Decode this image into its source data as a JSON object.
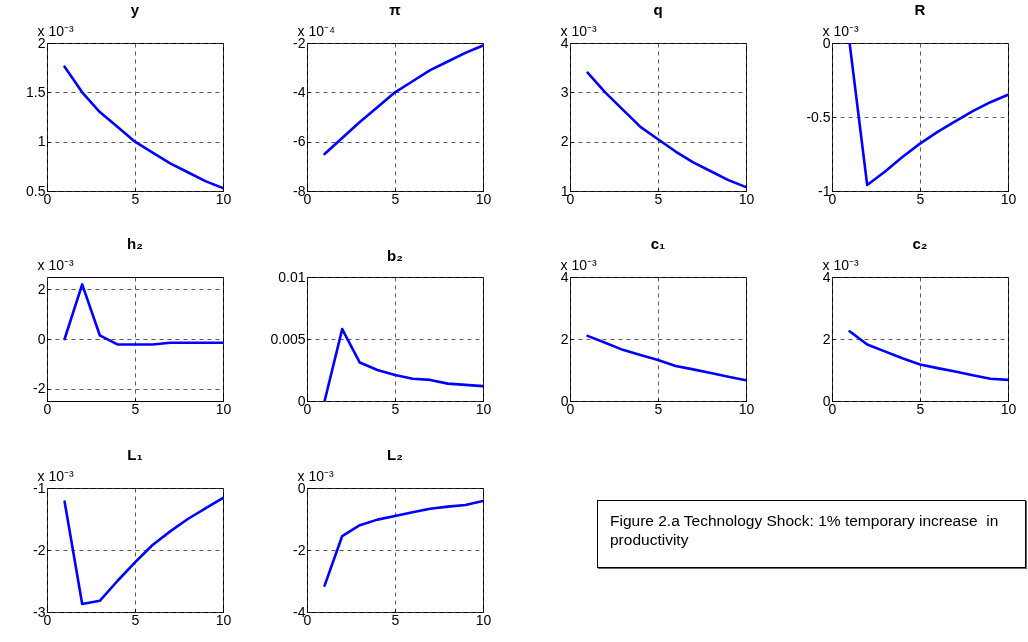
{
  "chart_data": [
    {
      "type": "line",
      "title": "y",
      "ylabel": "x 10⁻³",
      "x": [
        1,
        2,
        3,
        4,
        5,
        6,
        7,
        8,
        9,
        10
      ],
      "values": [
        1.76,
        1.5,
        1.3,
        1.15,
        1.0,
        0.89,
        0.78,
        0.69,
        0.6,
        0.53
      ],
      "color": "#0000ff",
      "xlim": [
        0,
        10
      ],
      "xticks": [
        0,
        5,
        10
      ],
      "ylim": [
        0.5,
        2
      ],
      "yticks": [
        0.5,
        1,
        1.5,
        2
      ],
      "grid": true
    },
    {
      "type": "line",
      "title": "π",
      "ylabel": "x 10⁻⁴",
      "x": [
        1,
        2,
        3,
        4,
        5,
        6,
        7,
        8,
        9,
        10
      ],
      "values": [
        -6.5,
        -5.85,
        -5.2,
        -4.6,
        -4.0,
        -3.55,
        -3.1,
        -2.75,
        -2.4,
        -2.1
      ],
      "color": "#0000ff",
      "xlim": [
        0,
        10
      ],
      "xticks": [
        0,
        5,
        10
      ],
      "ylim": [
        -8,
        -2
      ],
      "yticks": [
        -8,
        -6,
        -4,
        -2
      ],
      "grid": true
    },
    {
      "type": "line",
      "title": "q",
      "ylabel": "x 10⁻³",
      "x": [
        1,
        2,
        3,
        4,
        5,
        6,
        7,
        8,
        9,
        10
      ],
      "values": [
        3.4,
        3.0,
        2.65,
        2.3,
        2.05,
        1.8,
        1.58,
        1.4,
        1.22,
        1.08
      ],
      "color": "#0000ff",
      "xlim": [
        0,
        10
      ],
      "xticks": [
        0,
        5,
        10
      ],
      "ylim": [
        1,
        4
      ],
      "yticks": [
        1,
        2,
        3,
        4
      ],
      "grid": true
    },
    {
      "type": "line",
      "title": "R",
      "ylabel": "x 10⁻³",
      "x": [
        1,
        2,
        3,
        4,
        5,
        6,
        7,
        8,
        9,
        10
      ],
      "values": [
        0,
        -0.96,
        -0.87,
        -0.77,
        -0.68,
        -0.6,
        -0.53,
        -0.46,
        -0.4,
        -0.35
      ],
      "color": "#0000ff",
      "xlim": [
        0,
        10
      ],
      "xticks": [
        0,
        5,
        10
      ],
      "ylim": [
        -1,
        0
      ],
      "yticks": [
        -1,
        -0.5,
        0
      ],
      "grid": true
    },
    {
      "type": "line",
      "title": "h₂",
      "ylabel": "x 10⁻³",
      "x": [
        1,
        2,
        3,
        4,
        5,
        6,
        7,
        8,
        9,
        10
      ],
      "values": [
        0,
        2.2,
        0.15,
        -0.22,
        -0.22,
        -0.22,
        -0.15,
        -0.15,
        -0.15,
        -0.15
      ],
      "color": "#0000ff",
      "xlim": [
        0,
        10
      ],
      "xticks": [
        0,
        5,
        10
      ],
      "ylim": [
        -2.5,
        2.5
      ],
      "yticks": [
        -2,
        0,
        2
      ],
      "grid": true
    },
    {
      "type": "line",
      "title": "b₂",
      "x": [
        1,
        2,
        3,
        4,
        5,
        6,
        7,
        8,
        9,
        10
      ],
      "values": [
        0,
        0.0058,
        0.0031,
        0.0025,
        0.0021,
        0.0018,
        0.0017,
        0.0014,
        0.0013,
        0.0012
      ],
      "color": "#0000ff",
      "xlim": [
        0,
        10
      ],
      "xticks": [
        0,
        5,
        10
      ],
      "ylim": [
        0,
        0.01
      ],
      "yticks": [
        0,
        0.005,
        0.01
      ],
      "grid": true
    },
    {
      "type": "line",
      "title": "c₁",
      "ylabel": "x 10⁻³",
      "x": [
        1,
        2,
        3,
        4,
        5,
        6,
        7,
        8,
        9,
        10
      ],
      "values": [
        2.1,
        1.88,
        1.65,
        1.48,
        1.32,
        1.13,
        1.02,
        0.9,
        0.78,
        0.67
      ],
      "color": "#0000ff",
      "xlim": [
        0,
        10
      ],
      "xticks": [
        0,
        5,
        10
      ],
      "ylim": [
        0,
        4
      ],
      "yticks": [
        0,
        2,
        4
      ],
      "grid": true
    },
    {
      "type": "line",
      "title": "c₂",
      "ylabel": "x 10⁻³",
      "x": [
        1,
        2,
        3,
        4,
        5,
        6,
        7,
        8,
        9,
        10
      ],
      "values": [
        2.25,
        1.82,
        1.6,
        1.38,
        1.18,
        1.06,
        0.95,
        0.83,
        0.72,
        0.68
      ],
      "color": "#0000ff",
      "xlim": [
        0,
        10
      ],
      "xticks": [
        0,
        5,
        10
      ],
      "ylim": [
        0,
        4
      ],
      "yticks": [
        0,
        2,
        4
      ],
      "grid": true
    },
    {
      "type": "line",
      "title": "L₁",
      "ylabel": "x 10⁻³",
      "x": [
        1,
        2,
        3,
        4,
        5,
        6,
        7,
        8,
        9,
        10
      ],
      "values": [
        -1.22,
        -2.87,
        -2.82,
        -2.5,
        -2.2,
        -1.92,
        -1.7,
        -1.5,
        -1.33,
        -1.16
      ],
      "color": "#0000ff",
      "xlim": [
        0,
        10
      ],
      "xticks": [
        0,
        5,
        10
      ],
      "ylim": [
        -3,
        -1
      ],
      "yticks": [
        -3,
        -2,
        -1
      ],
      "grid": true
    },
    {
      "type": "line",
      "title": "L₂",
      "ylabel": "x 10⁻³",
      "x": [
        1,
        2,
        3,
        4,
        5,
        6,
        7,
        8,
        9,
        10
      ],
      "values": [
        -3.15,
        -1.55,
        -1.2,
        -1.02,
        -0.9,
        -0.78,
        -0.67,
        -0.6,
        -0.55,
        -0.42
      ],
      "color": "#0000ff",
      "xlim": [
        0,
        10
      ],
      "xticks": [
        0,
        5,
        10
      ],
      "ylim": [
        -4,
        0
      ],
      "yticks": [
        -4,
        -2,
        0
      ],
      "grid": true
    },
    {
      "type": "other",
      "annotations": [
        "Figure 2.a Technology Shock: 1% temporary increase  in productivity"
      ]
    }
  ]
}
